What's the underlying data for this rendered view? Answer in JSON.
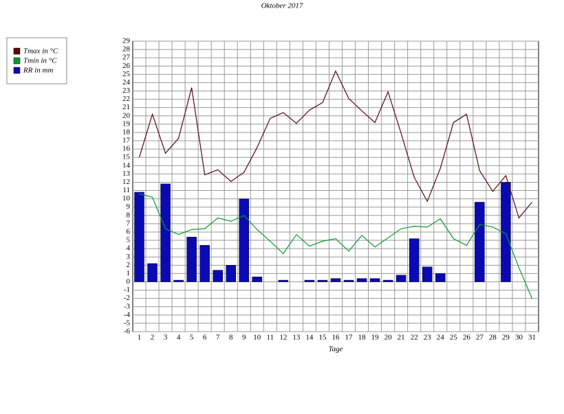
{
  "chart_data": {
    "type": "bar",
    "title": "Oktober 2017",
    "x_label": "Tage",
    "categories": [
      "1",
      "2",
      "3",
      "4",
      "5",
      "6",
      "7",
      "8",
      "9",
      "10",
      "11",
      "12",
      "13",
      "14",
      "15",
      "16",
      "17",
      "18",
      "19",
      "20",
      "21",
      "22",
      "23",
      "24",
      "25",
      "26",
      "27",
      "28",
      "29",
      "30",
      "31"
    ],
    "series": [
      {
        "name": "Tmax in °C",
        "type": "line",
        "color": "#5a0a0a",
        "values": [
          15,
          20.2,
          15.5,
          17.3,
          23.4,
          12.9,
          13.5,
          12.1,
          13.2,
          16.2,
          19.7,
          20.4,
          19.1,
          20.7,
          21.6,
          25.4,
          22.1,
          20.6,
          19.2,
          22.9,
          17.9,
          12.6,
          9.7,
          13.7,
          19.2,
          20.2,
          13.4,
          10.9,
          12.8,
          7.7,
          9.6
        ]
      },
      {
        "name": "Tmin in °C",
        "type": "line",
        "color": "#0a9a2a",
        "values": [
          10.6,
          10.2,
          6.4,
          5.7,
          6.3,
          6.4,
          7.7,
          7.3,
          8,
          6.3,
          4.9,
          3.4,
          5.7,
          4.3,
          4.9,
          5.2,
          3.7,
          5.6,
          4.2,
          5.3,
          6.4,
          6.7,
          6.6,
          7.6,
          5.2,
          4.4,
          6.9,
          6.6,
          5.8,
          1.7,
          -2
        ]
      },
      {
        "name": "RR in mm",
        "type": "bar",
        "color": "#0a0ab4",
        "values": [
          10.8,
          2.2,
          11.8,
          0.2,
          5.4,
          4.4,
          1.4,
          2,
          10,
          0.6,
          0,
          0.2,
          0,
          0.2,
          0.2,
          0.4,
          0.2,
          0.4,
          0.4,
          0.2,
          0.8,
          5.2,
          1.8,
          1,
          0,
          0,
          9.6,
          0,
          12,
          0,
          0
        ]
      }
    ],
    "ylim": [
      -6,
      29
    ],
    "yticks": [
      -6,
      -5,
      -4,
      -3,
      -2,
      -1,
      0,
      1,
      2,
      3,
      4,
      5,
      6,
      7,
      8,
      9,
      10,
      11,
      12,
      13,
      14,
      15,
      16,
      17,
      18,
      19,
      20,
      21,
      22,
      23,
      24,
      25,
      26,
      27,
      28,
      29
    ],
    "grid": true
  }
}
